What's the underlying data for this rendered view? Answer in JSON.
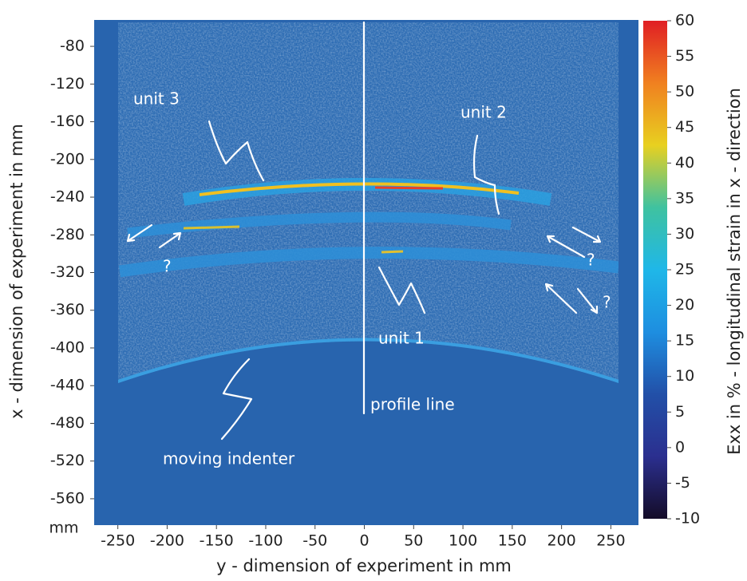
{
  "chart_data": {
    "type": "heatmap",
    "xlabel": "y - dimension of experiment in mm",
    "ylabel": "x - dimension of experiment in mm",
    "unit_label": "mm",
    "xlim": [
      -274,
      278
    ],
    "ylim": [
      -588,
      -52
    ],
    "xticks": [
      -250,
      -200,
      -150,
      -100,
      -50,
      0,
      50,
      100,
      150,
      200,
      250
    ],
    "yticks": [
      -80,
      -120,
      -160,
      -200,
      -240,
      -280,
      -320,
      -360,
      -400,
      -440,
      -480,
      -520,
      -560
    ],
    "colorbar": {
      "label": "Exx in % - longitudinal strain in x - direction",
      "clim": [
        -10,
        60
      ],
      "ticks": [
        60,
        55,
        50,
        45,
        40,
        35,
        30,
        25,
        20,
        15,
        10,
        5,
        0,
        -5,
        -10
      ],
      "colormap": [
        "#140c28",
        "#2b2f8f",
        "#2250a8",
        "#1e8ee0",
        "#1fb7e8",
        "#3fc2a0",
        "#e8d020",
        "#f08020",
        "#e01e24"
      ]
    },
    "annotations": [
      "unit 3",
      "unit 2",
      "unit 1",
      "profile line",
      "moving indenter",
      "?",
      "?",
      "?"
    ]
  }
}
